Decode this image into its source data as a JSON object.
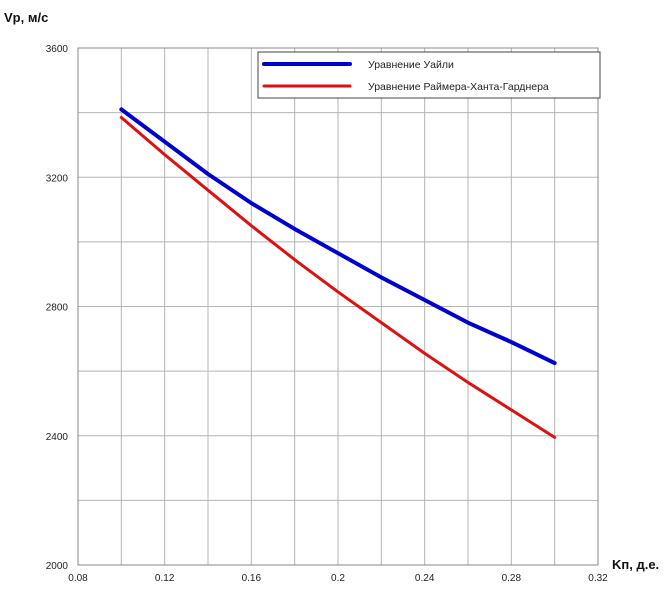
{
  "chart_data": {
    "type": "line",
    "ylabel": "Vp, м/с",
    "xlabel": "Kп, д.е.",
    "xlim": [
      0.08,
      0.32
    ],
    "ylim": [
      2000,
      3600
    ],
    "xticks": [
      "0.08",
      "0.12",
      "0.16",
      "0.2",
      "0.24",
      "0.28",
      "0.32"
    ],
    "yticks": [
      "2000",
      "2400",
      "2800",
      "3200",
      "3600"
    ],
    "grid": true,
    "legend_position": "top-right",
    "x": [
      0.1,
      0.12,
      0.14,
      0.16,
      0.18,
      0.2,
      0.22,
      0.24,
      0.26,
      0.28,
      0.3
    ],
    "series": [
      {
        "name": "Уравнение Уайли",
        "color": "#0000cc",
        "values": [
          3410,
          3310,
          3210,
          3120,
          3040,
          2965,
          2890,
          2820,
          2750,
          2690,
          2625
        ]
      },
      {
        "name": "Уравнение Раймера-Ханта-Гарднера",
        "color": "#dd1111",
        "values": [
          3385,
          3270,
          3160,
          3050,
          2945,
          2845,
          2750,
          2655,
          2565,
          2480,
          2395
        ]
      }
    ]
  }
}
